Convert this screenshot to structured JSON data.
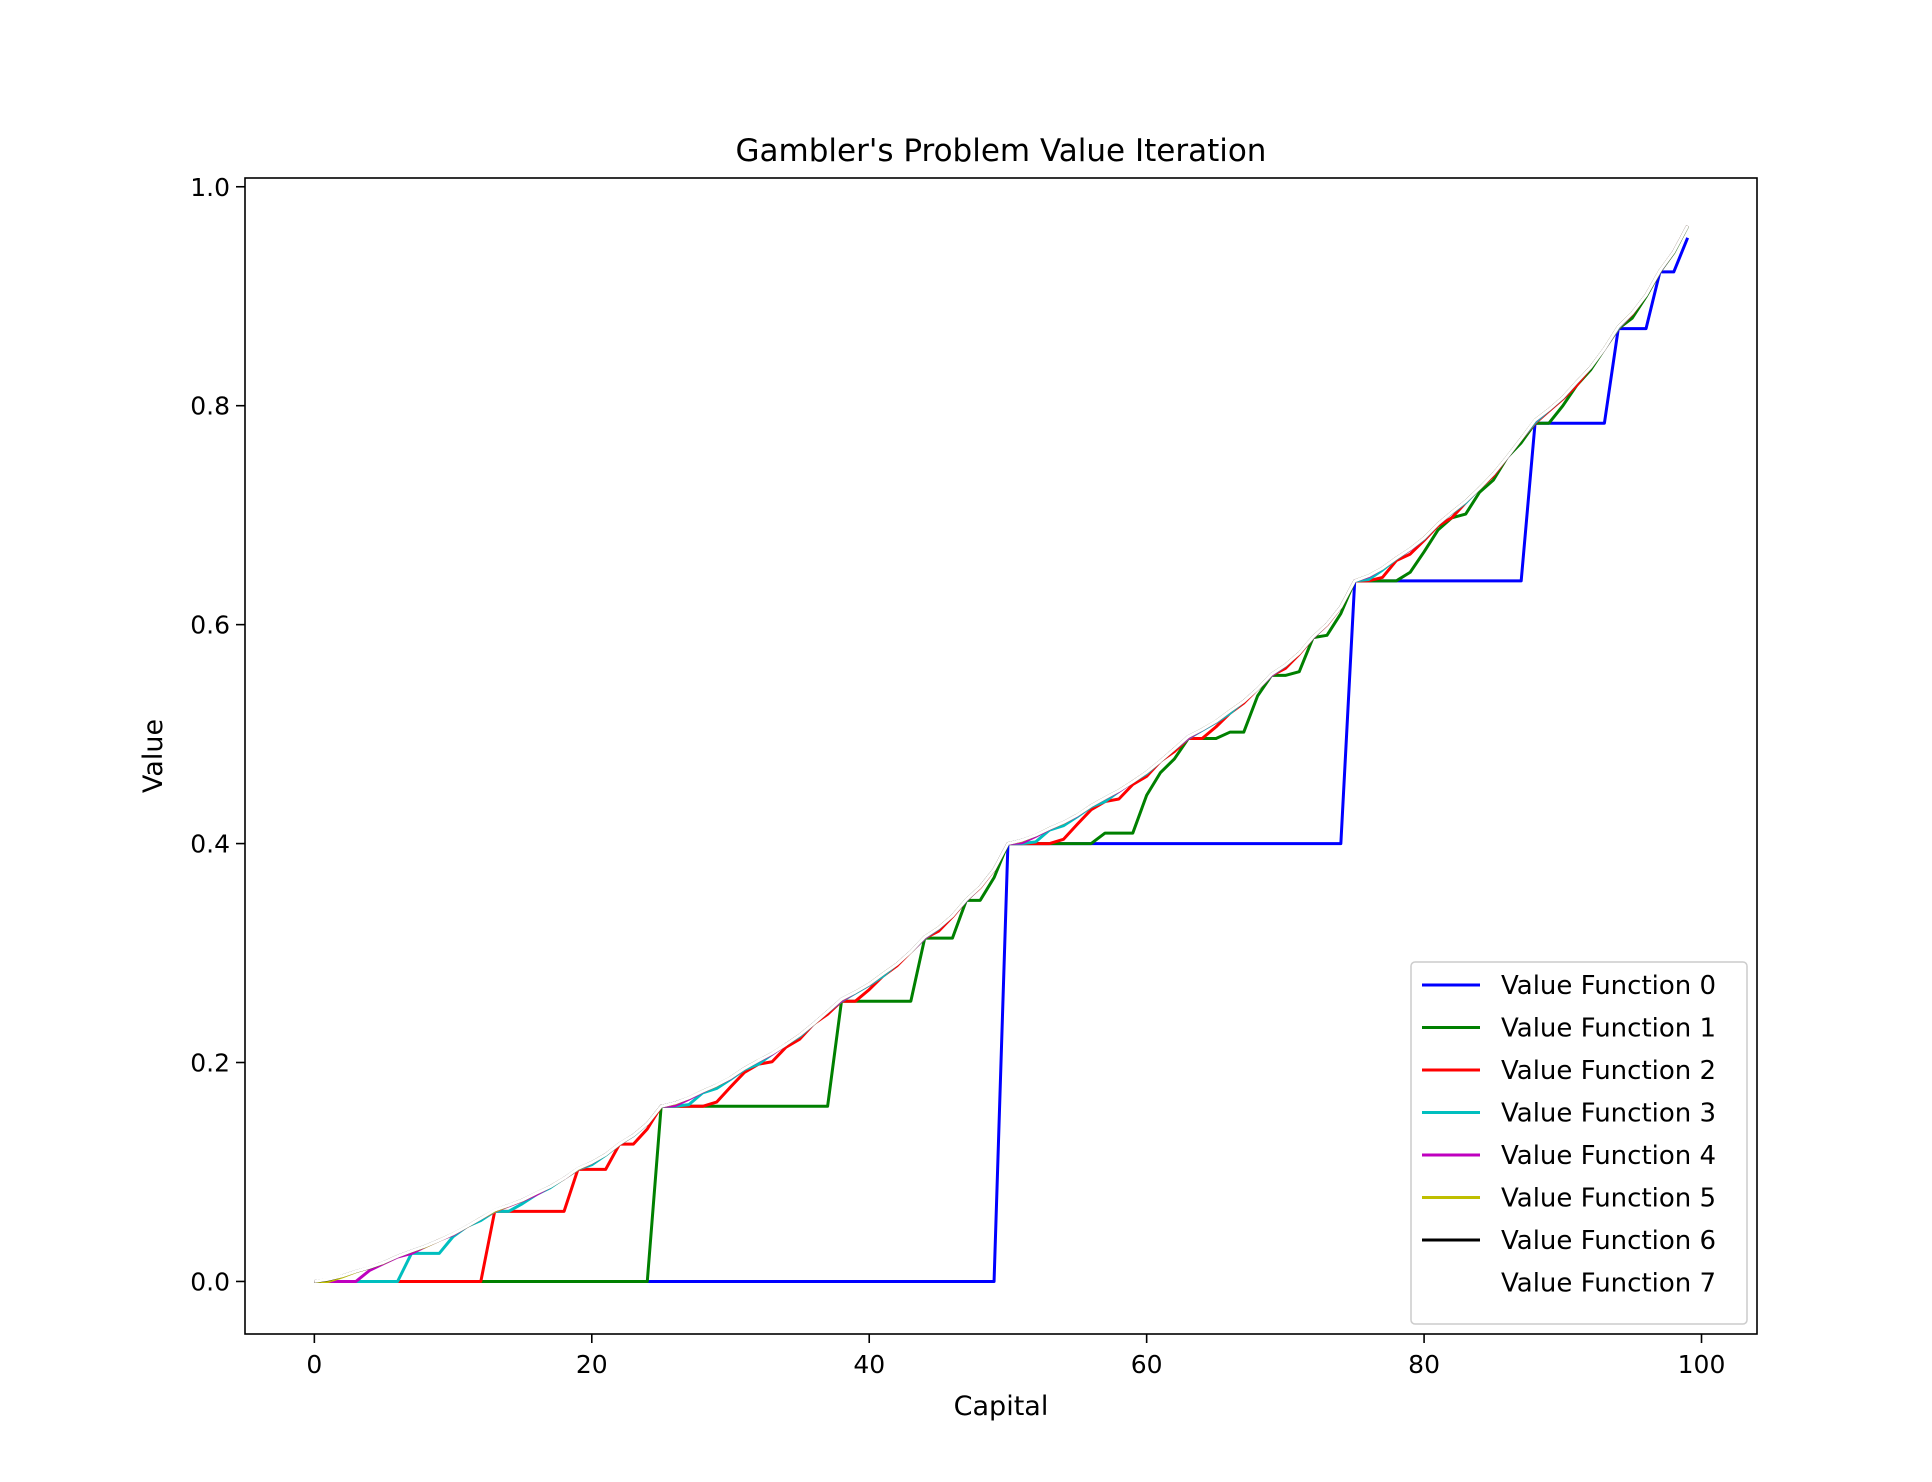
{
  "chart_data": {
    "type": "line",
    "title": "Gambler's Problem Value Iteration",
    "xlabel": "Capital",
    "ylabel": "Value",
    "xlim": [
      -5,
      104
    ],
    "ylim": [
      -0.048,
      1.008
    ],
    "xticks": [
      0,
      20,
      40,
      60,
      80,
      100
    ],
    "xtick_labels": [
      "0",
      "20",
      "40",
      "60",
      "80",
      "100"
    ],
    "yticks": [
      0.0,
      0.2,
      0.4,
      0.6,
      0.8,
      1.0
    ],
    "ytick_labels": [
      "0.0",
      "0.2",
      "0.4",
      "0.6",
      "0.8",
      "1.0"
    ],
    "grid": false,
    "legend_position": "lower-right",
    "ph": 0.4,
    "capital_range": [
      0,
      99
    ],
    "iterations": 8,
    "series": [
      {
        "name": "Value Function 0",
        "color": "#0000ff"
      },
      {
        "name": "Value Function 1",
        "color": "#008000"
      },
      {
        "name": "Value Function 2",
        "color": "#ff0000"
      },
      {
        "name": "Value Function 3",
        "color": "#00bfbf"
      },
      {
        "name": "Value Function 4",
        "color": "#bf00bf"
      },
      {
        "name": "Value Function 5",
        "color": "#bfbf00"
      },
      {
        "name": "Value Function 6",
        "color": "#000000"
      },
      {
        "name": "Value Function 7",
        "color": "#ffffff"
      }
    ]
  }
}
